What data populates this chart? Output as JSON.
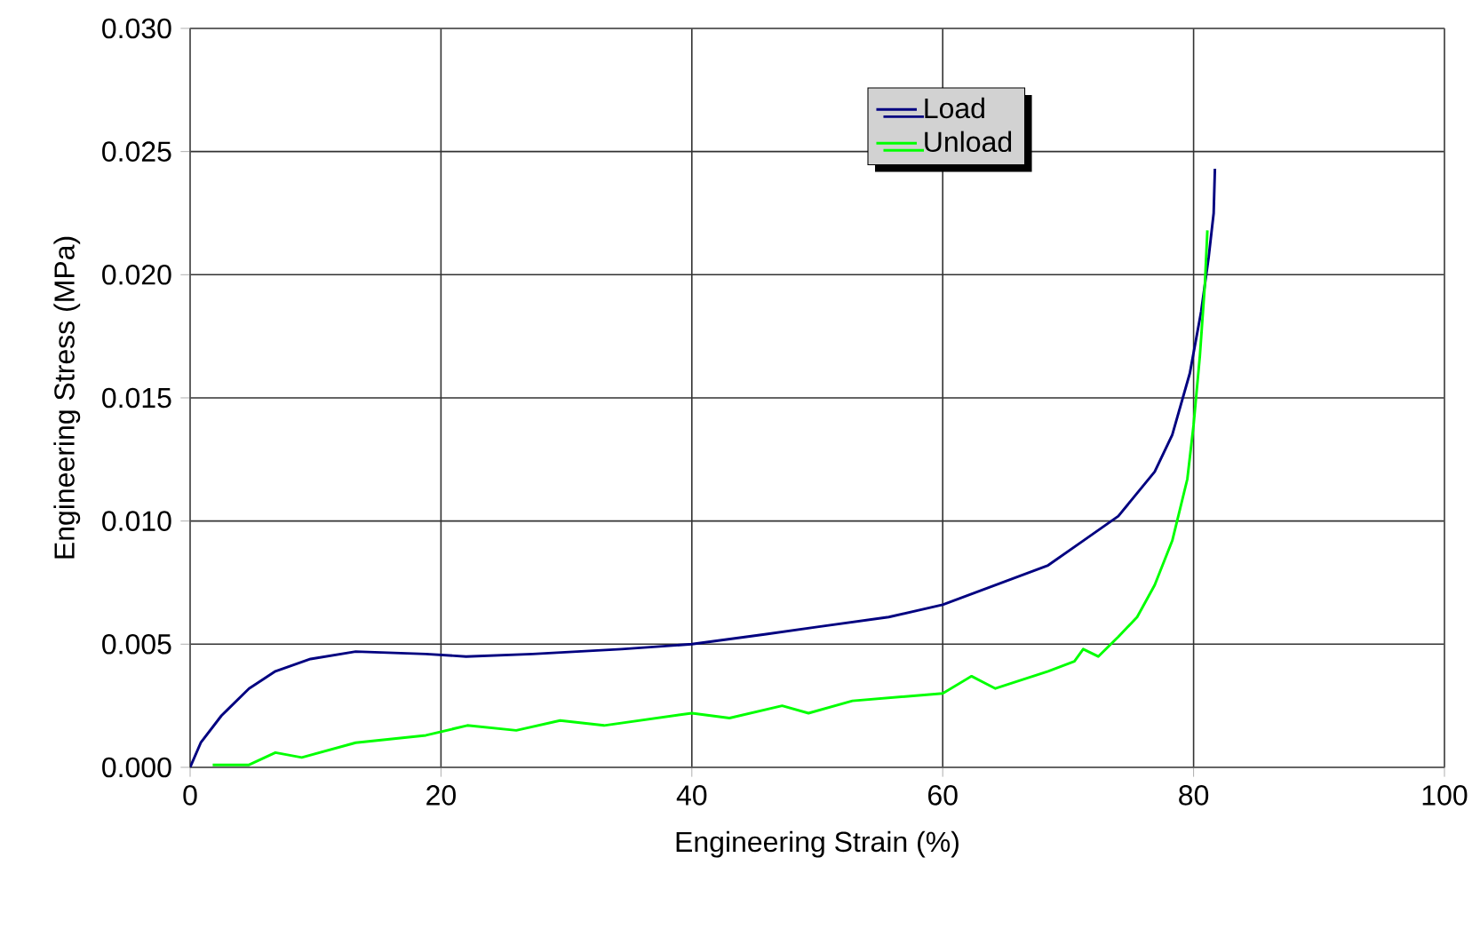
{
  "chart_data": {
    "type": "line",
    "xlabel": "Engineering Strain (%)",
    "ylabel": "Engineering Stress (MPa)",
    "xlim": [
      0,
      100
    ],
    "ylim": [
      0,
      0.03
    ],
    "xticks": [
      0,
      20,
      40,
      60,
      80,
      100
    ],
    "yticks": [
      {
        "value": 0,
        "label": "0.000"
      },
      {
        "value": 0.005,
        "label": "0.005"
      },
      {
        "value": 0.01,
        "label": "0.010"
      },
      {
        "value": 0.015,
        "label": "0.015"
      },
      {
        "value": 0.02,
        "label": "0.020"
      },
      {
        "value": 0.025,
        "label": "0.025"
      },
      {
        "value": 0.03,
        "label": "0.030"
      }
    ],
    "grid": true,
    "legend": "top right",
    "marker": "none",
    "line_style": "solid",
    "series": [
      {
        "name": "Load",
        "color": "#000080",
        "x": [
          0,
          0.85,
          2.5,
          4.7,
          6.8,
          9.6,
          13.2,
          18.8,
          22,
          27.3,
          34.4,
          40,
          45.8,
          50,
          55.7,
          60,
          64.2,
          68.4,
          71.2,
          74,
          76.9,
          78.3,
          79.7,
          80.6,
          81.2,
          81.6,
          81.7
        ],
        "values": [
          0,
          0.001,
          0.0021,
          0.0032,
          0.0039,
          0.0044,
          0.0047,
          0.0046,
          0.0045,
          0.0046,
          0.0048,
          0.005,
          0.0054,
          0.0057,
          0.0061,
          0.0066,
          0.0074,
          0.0082,
          0.0092,
          0.0102,
          0.012,
          0.0135,
          0.016,
          0.0185,
          0.0207,
          0.0225,
          0.0243
        ]
      },
      {
        "name": "Unload",
        "color": "#00ff00",
        "x": [
          1.8,
          4.7,
          6.8,
          8.9,
          13.2,
          18.8,
          22.1,
          26,
          29.5,
          33,
          40,
          43,
          47.2,
          49.3,
          52.8,
          60,
          62.3,
          64.2,
          68.4,
          70.5,
          71.2,
          72.4,
          74,
          75.5,
          76.9,
          78.3,
          79.5,
          80,
          80.5,
          80.9,
          81.1
        ],
        "values": [
          0.0001,
          0.0001,
          0.0006,
          0.0004,
          0.001,
          0.0013,
          0.0017,
          0.0015,
          0.0019,
          0.0017,
          0.0022,
          0.002,
          0.0025,
          0.0022,
          0.0027,
          0.003,
          0.0037,
          0.0032,
          0.0039,
          0.0043,
          0.0048,
          0.0045,
          0.0053,
          0.0061,
          0.0074,
          0.0092,
          0.0117,
          0.0139,
          0.0167,
          0.0196,
          0.0218
        ]
      }
    ]
  }
}
